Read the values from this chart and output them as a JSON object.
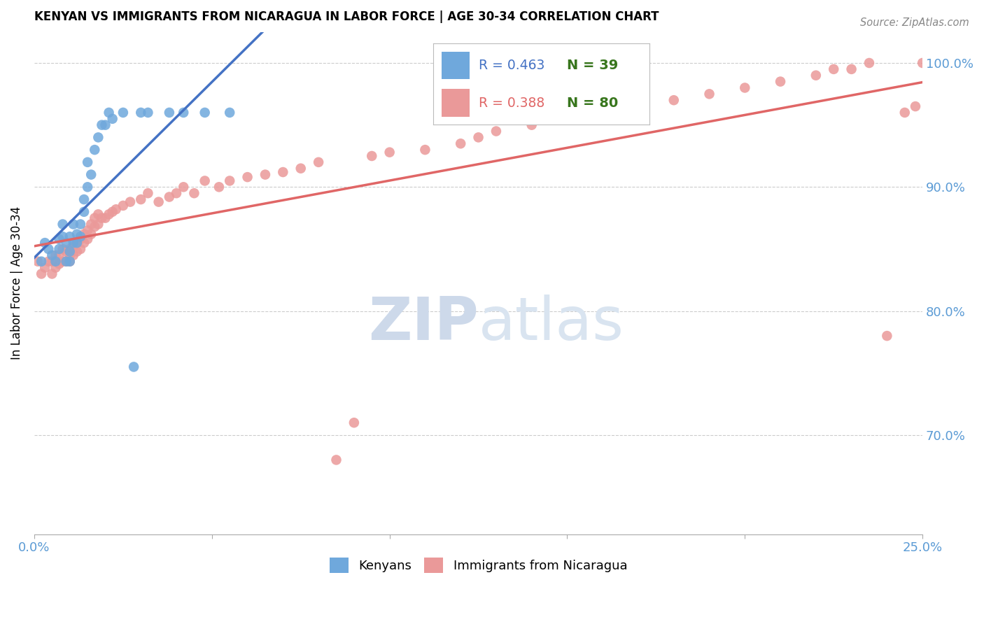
{
  "title": "KENYAN VS IMMIGRANTS FROM NICARAGUA IN LABOR FORCE | AGE 30-34 CORRELATION CHART",
  "source": "Source: ZipAtlas.com",
  "ylabel": "In Labor Force | Age 30-34",
  "xlim": [
    0.0,
    0.25
  ],
  "ylim": [
    0.62,
    1.025
  ],
  "xticks": [
    0.0,
    0.05,
    0.1,
    0.15,
    0.2,
    0.25
  ],
  "xticklabels": [
    "0.0%",
    "",
    "",
    "",
    "",
    "25.0%"
  ],
  "yticks": [
    0.7,
    0.8,
    0.9,
    1.0
  ],
  "yticklabels": [
    "70.0%",
    "80.0%",
    "90.0%",
    "100.0%"
  ],
  "legend_R_blue": "0.463",
  "legend_N_blue": "39",
  "legend_R_pink": "0.388",
  "legend_N_pink": "80",
  "blue_color": "#6fa8dc",
  "pink_color": "#ea9999",
  "blue_line_color": "#4472c4",
  "pink_line_color": "#e06666",
  "tick_color": "#5b9bd5",
  "watermark_color": "#dce6f1",
  "kenyans_x": [
    0.002,
    0.003,
    0.004,
    0.005,
    0.006,
    0.007,
    0.007,
    0.008,
    0.008,
    0.009,
    0.009,
    0.01,
    0.01,
    0.01,
    0.011,
    0.011,
    0.012,
    0.012,
    0.013,
    0.013,
    0.014,
    0.014,
    0.015,
    0.015,
    0.016,
    0.017,
    0.018,
    0.019,
    0.02,
    0.021,
    0.022,
    0.025,
    0.028,
    0.03,
    0.032,
    0.038,
    0.042,
    0.048,
    0.055
  ],
  "kenyans_y": [
    0.84,
    0.855,
    0.85,
    0.845,
    0.84,
    0.85,
    0.858,
    0.86,
    0.87,
    0.84,
    0.855,
    0.84,
    0.848,
    0.86,
    0.855,
    0.87,
    0.855,
    0.862,
    0.86,
    0.87,
    0.88,
    0.89,
    0.9,
    0.92,
    0.91,
    0.93,
    0.94,
    0.95,
    0.95,
    0.96,
    0.955,
    0.96,
    0.755,
    0.96,
    0.96,
    0.96,
    0.96,
    0.96,
    0.96
  ],
  "nicaragua_x": [
    0.001,
    0.002,
    0.003,
    0.004,
    0.005,
    0.005,
    0.006,
    0.006,
    0.007,
    0.007,
    0.008,
    0.008,
    0.009,
    0.009,
    0.01,
    0.01,
    0.01,
    0.011,
    0.011,
    0.012,
    0.012,
    0.013,
    0.013,
    0.014,
    0.014,
    0.015,
    0.015,
    0.016,
    0.016,
    0.017,
    0.017,
    0.018,
    0.018,
    0.019,
    0.02,
    0.021,
    0.022,
    0.023,
    0.025,
    0.027,
    0.03,
    0.032,
    0.035,
    0.038,
    0.04,
    0.042,
    0.045,
    0.048,
    0.052,
    0.055,
    0.06,
    0.065,
    0.07,
    0.075,
    0.08,
    0.085,
    0.09,
    0.095,
    0.1,
    0.11,
    0.12,
    0.125,
    0.13,
    0.14,
    0.15,
    0.155,
    0.16,
    0.17,
    0.18,
    0.19,
    0.2,
    0.21,
    0.22,
    0.225,
    0.23,
    0.235,
    0.24,
    0.245,
    0.248,
    0.25
  ],
  "nicaragua_y": [
    0.84,
    0.83,
    0.835,
    0.84,
    0.83,
    0.84,
    0.835,
    0.845,
    0.838,
    0.845,
    0.84,
    0.85,
    0.84,
    0.848,
    0.84,
    0.845,
    0.85,
    0.845,
    0.852,
    0.848,
    0.855,
    0.85,
    0.858,
    0.855,
    0.862,
    0.858,
    0.865,
    0.862,
    0.87,
    0.868,
    0.875,
    0.87,
    0.878,
    0.875,
    0.875,
    0.878,
    0.88,
    0.882,
    0.885,
    0.888,
    0.89,
    0.895,
    0.888,
    0.892,
    0.895,
    0.9,
    0.895,
    0.905,
    0.9,
    0.905,
    0.908,
    0.91,
    0.912,
    0.915,
    0.92,
    0.68,
    0.71,
    0.925,
    0.928,
    0.93,
    0.935,
    0.94,
    0.945,
    0.95,
    0.955,
    0.958,
    0.96,
    0.965,
    0.97,
    0.975,
    0.98,
    0.985,
    0.99,
    0.995,
    0.995,
    1.0,
    0.78,
    0.96,
    0.965,
    1.0
  ]
}
